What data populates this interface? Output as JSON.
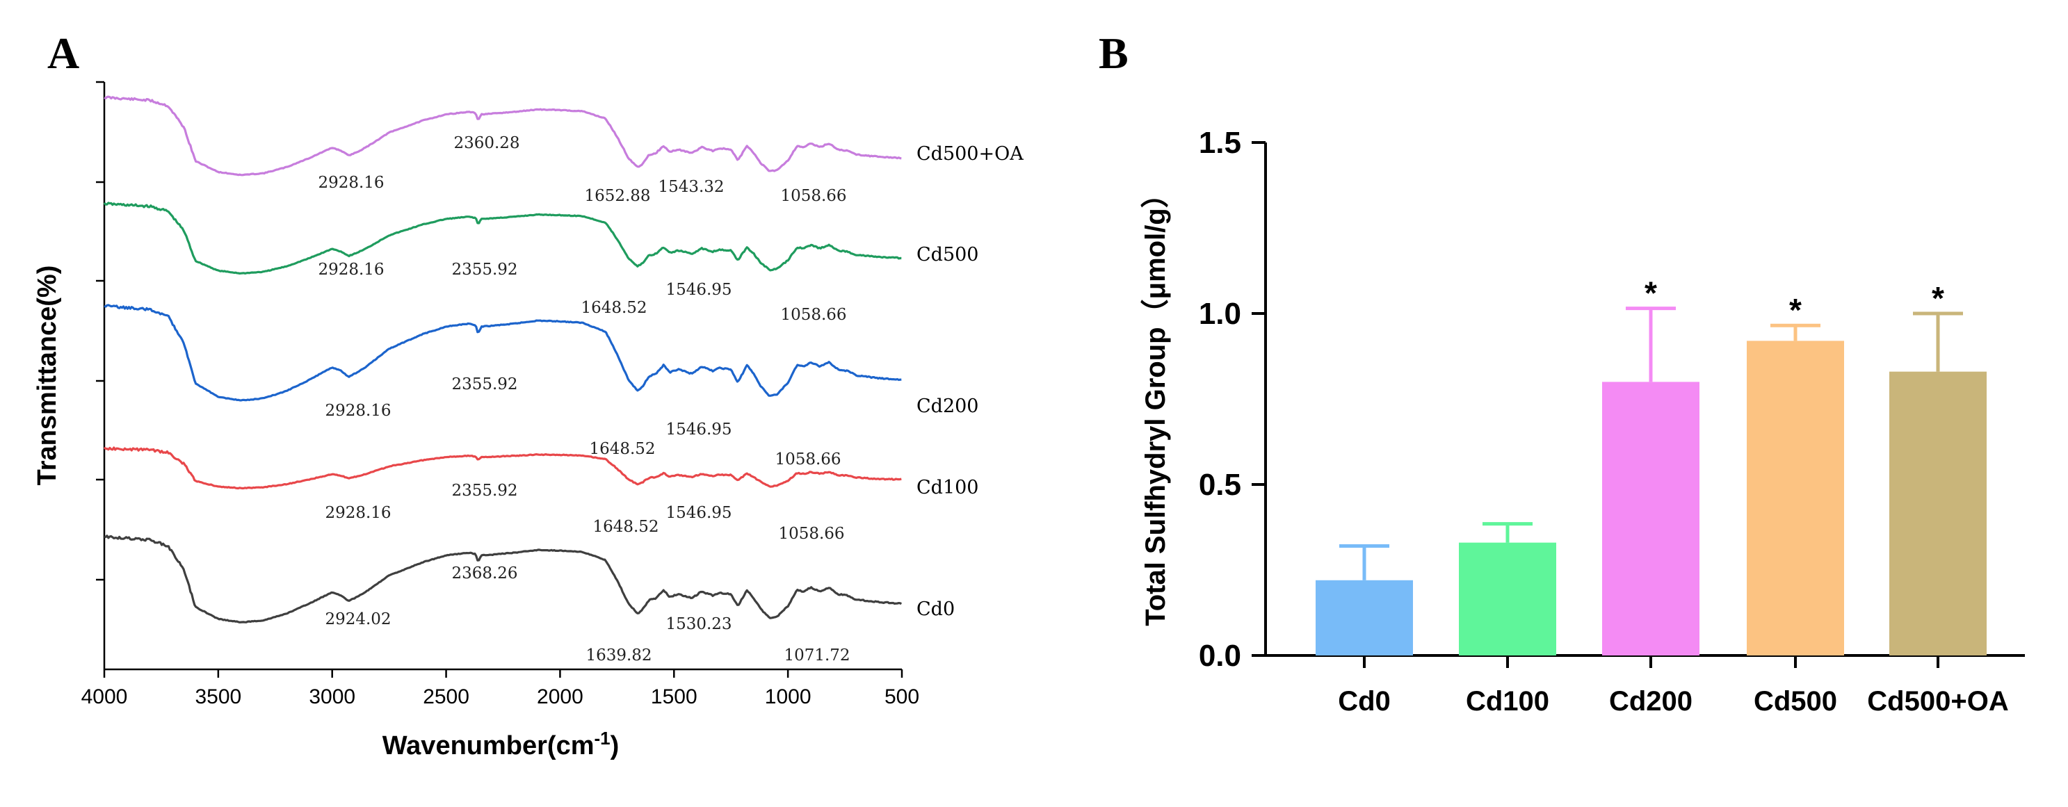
{
  "panels": {
    "a_label": "A",
    "b_label": "B"
  },
  "chart_data": [
    {
      "type": "line",
      "panel": "A",
      "title": "",
      "xlabel": "Wavenumber",
      "xlabel_unit": "(cm",
      "xlabel_exp": "-1",
      "xlabel_close": ")",
      "ylabel": "Transmittance(%)",
      "xlim": [
        4000,
        500
      ],
      "x_ticks": [
        "4000",
        "3500",
        "3000",
        "2500",
        "2000",
        "1500",
        "1000",
        "500"
      ],
      "series": [
        {
          "name": "Cd500+OA",
          "color": "#c77ddd",
          "peaks": [
            "2928.16",
            "2360.28",
            "1652.88",
            "1543.32",
            "1058.66"
          ]
        },
        {
          "name": "Cd500",
          "color": "#1f9c5e",
          "peaks": [
            "2928.16",
            "2355.92",
            "1648.52",
            "1546.95",
            "1058.66"
          ]
        },
        {
          "name": "Cd200",
          "color": "#1c64cc",
          "peaks": [
            "2928.16",
            "2355.92",
            "1648.52",
            "1546.95",
            "1058.66"
          ]
        },
        {
          "name": "Cd100",
          "color": "#e8474a",
          "peaks": [
            "2928.16",
            "2355.92",
            "1648.52",
            "1546.95",
            "1058.66"
          ]
        },
        {
          "name": "Cd0",
          "color": "#3f3f3f",
          "peaks": [
            "2924.02",
            "2368.26",
            "1639.82",
            "1530.23",
            "1071.72"
          ]
        }
      ]
    },
    {
      "type": "bar",
      "panel": "B",
      "title": "",
      "xlabel": "",
      "ylabel": "Total Sulfhydryl Group（μmol/g）",
      "ylim": [
        0,
        1.5
      ],
      "y_ticks": [
        "0.0",
        "0.5",
        "1.0",
        "1.5"
      ],
      "categories": [
        "Cd0",
        "Cd100",
        "Cd200",
        "Cd500",
        "Cd500+OA"
      ],
      "values": [
        0.22,
        0.33,
        0.8,
        0.92,
        0.83
      ],
      "errors": [
        0.1,
        0.055,
        0.215,
        0.045,
        0.17
      ],
      "significance": [
        "",
        "",
        "*",
        "*",
        "*"
      ],
      "colors": [
        "#78bbf8",
        "#5ff59a",
        "#f48bf4",
        "#fcc382",
        "#c9b57a"
      ]
    }
  ]
}
